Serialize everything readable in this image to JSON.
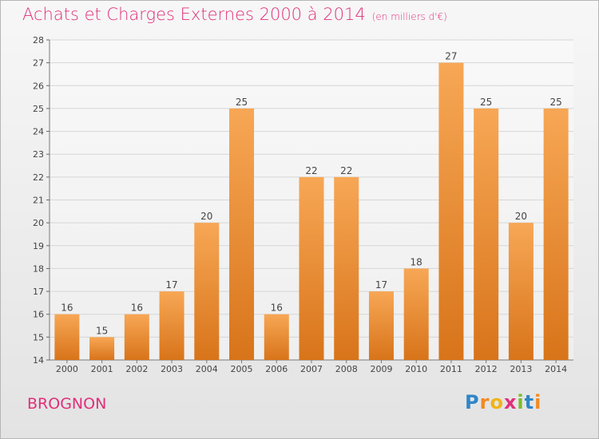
{
  "title": "Achats et Charges Externes 2000 à 2014",
  "subtitle": "(en milliers d'€)",
  "town": "BROGNON",
  "logo": {
    "letters": [
      "P",
      "r",
      "o",
      "x",
      "i",
      "t",
      "i"
    ],
    "colors": [
      "#2e86c8",
      "#f08a24",
      "#f0b418",
      "#e0307a",
      "#7cbb2a",
      "#2e86c8",
      "#f08a24"
    ]
  },
  "colors": {
    "bar_light": "#f7a755",
    "bar_dark": "#d8741a",
    "title": "#e0307a",
    "grid": "#d6d6d6"
  },
  "chart_data": {
    "type": "bar",
    "title": "Achats et Charges Externes 2000 à 2014",
    "subtitle": "(en milliers d'€)",
    "categories": [
      "2000",
      "2001",
      "2002",
      "2003",
      "2004",
      "2005",
      "2006",
      "2007",
      "2008",
      "2009",
      "2010",
      "2011",
      "2012",
      "2013",
      "2014"
    ],
    "values": [
      16,
      15,
      16,
      17,
      20,
      25,
      16,
      22,
      22,
      17,
      18,
      27,
      25,
      20,
      25
    ],
    "ylim": [
      14,
      28
    ],
    "yticks": [
      14,
      15,
      16,
      17,
      18,
      19,
      20,
      21,
      22,
      23,
      24,
      25,
      26,
      27,
      28
    ],
    "grid": true,
    "data_labels": true
  }
}
